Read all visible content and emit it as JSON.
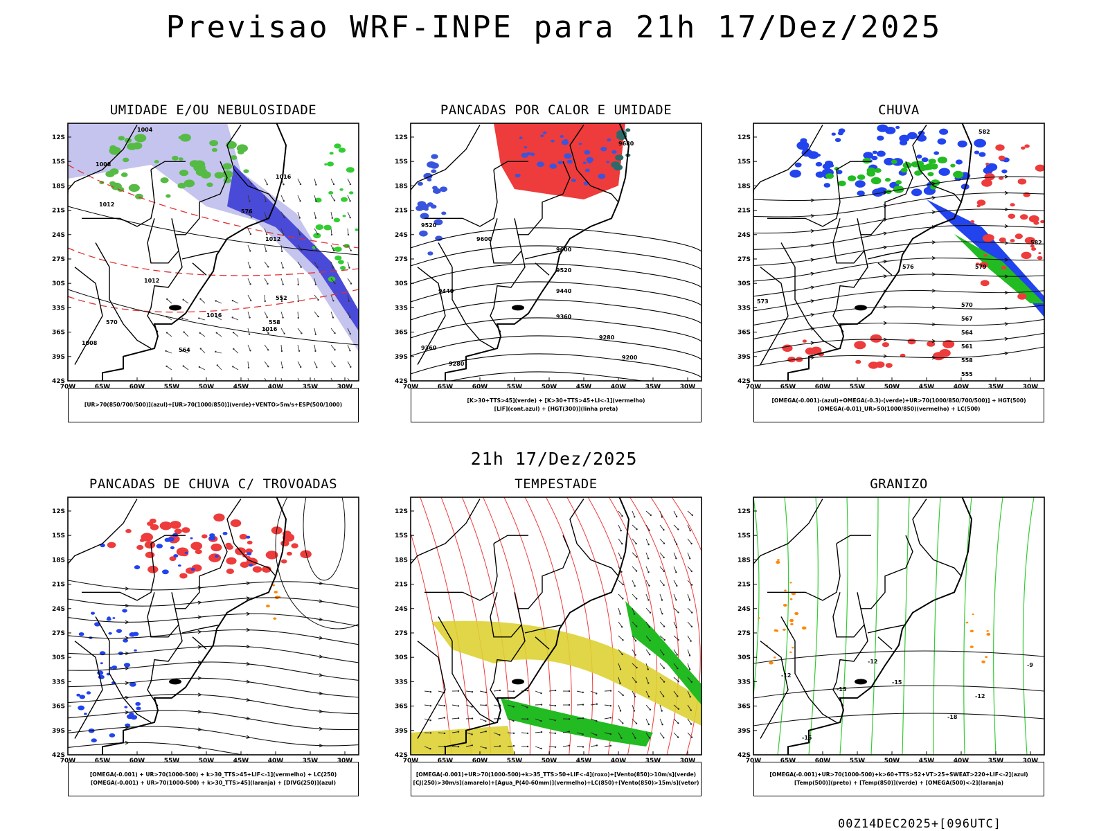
{
  "main_title": "Previsao WRF-INPE  para 21h 17/Dez/2025",
  "mid_title": "21h 17/Dez/2025",
  "footer": "00Z14DEC2025+[096UTC]",
  "axes": {
    "lat_labels": [
      "12S",
      "15S",
      "18S",
      "21S",
      "24S",
      "27S",
      "30S",
      "33S",
      "36S",
      "39S",
      "42S"
    ],
    "lon_labels": [
      "70W",
      "65W",
      "60W",
      "55W",
      "50W",
      "45W",
      "40W",
      "35W",
      "30W"
    ]
  },
  "panels": [
    {
      "id": "umidade",
      "title": "UMIDADE E/OU NEBULOSIDADE",
      "legend": [
        "[UR>70(850/700/500)](azul)+[UR>70(1000/850)](verde)+VENTO>5m/s+ESP(500/1000)"
      ],
      "contour_labels": [
        "1008",
        "1012",
        "1012",
        "1016",
        "1016",
        "1016",
        "1012",
        "1008",
        "570",
        "576",
        "564",
        "558",
        "552",
        "1004"
      ]
    },
    {
      "id": "pancadas_calor",
      "title": "PANCADAS POR CALOR E UMIDADE",
      "legend": [
        "[K>30+TTS>45](verde) + [K>30+TTS>45+LI<-1](vermelho)",
        "[LIF](cont.azul) + [HGT(300)](linha preta)"
      ],
      "contour_labels": [
        "9600",
        "9600",
        "9520",
        "9520",
        "9440",
        "9440",
        "9360",
        "9360",
        "9280",
        "9200",
        "9680",
        "9280"
      ]
    },
    {
      "id": "chuva",
      "title": "CHUVA",
      "legend": [
        "[OMEGA(-0.001)-(azul)+OMEGA(-0.3)-(verde)+UR>70(1000/850/700/500)] + HGT(500)",
        "[OMEGA(-0.01)_UR>50(1000/850)(vermelho) + LC(500)"
      ],
      "contour_labels": [
        "582",
        "576",
        "573",
        "570",
        "567",
        "564",
        "561",
        "558",
        "555",
        "579",
        "582"
      ]
    },
    {
      "id": "trovoadas",
      "title": "PANCADAS DE CHUVA C/ TROVOADAS",
      "legend": [
        "[OMEGA(-0.001) + UR>70(1000-500) + k>30_TTS>45+LIF<-1](vermelho) + LC(250)",
        "[OMEGA(-0.001) + UR>70(1000-500) + k>30_TTS>45](laranja) + [DIVG(250)](azul)"
      ],
      "contour_labels": []
    },
    {
      "id": "tempestade",
      "title": "TEMPESTADE",
      "legend": [
        "[OMEGA(-0.001)+UR>70(1000-500)+k>35_TTS>50+LIF<-4](roxo)+[Vento(850)>10m/s](verde)",
        "[CJ(250)>30m/s](amarelo)+[Agua_P(40-60mm)](vermelho)+LC(850)+[Vento(850)>15m/s](vetor)"
      ],
      "contour_labels": []
    },
    {
      "id": "granizo",
      "title": "GRANIZO",
      "legend": [
        "[OMEGA(-0.001)+UR>70(1000-500)+k>60+TTS>52+VT>25+SWEAT>220+LIF<-2](azul)",
        "[Temp(500)](preto) + [Temp(850)](verde) + [OMEGA(500)<-2](laranja)"
      ],
      "contour_labels": [
        "-12",
        "-12",
        "-12",
        "-15",
        "-15",
        "-18",
        "-9",
        "-15"
      ]
    }
  ]
}
